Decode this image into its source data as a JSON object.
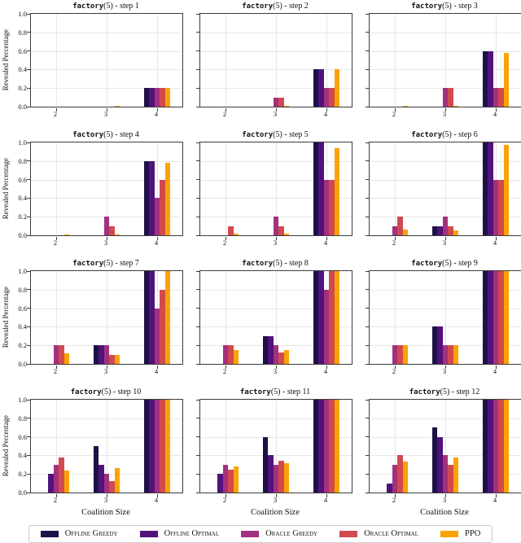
{
  "chart_data": {
    "type": "bar",
    "layout": {
      "rows": 4,
      "cols": 3
    },
    "categories": [
      "2",
      "3",
      "4"
    ],
    "xlabel": "Coalition Size",
    "ylabel": "Revealed Percentage",
    "ylim": [
      0.0,
      1.0
    ],
    "yticks": [
      "0.0",
      "0.2",
      "0.4",
      "0.6",
      "0.8",
      "1.0"
    ],
    "grid": true,
    "legend_position": "bottom",
    "series": [
      {
        "name": "Offline Greedy",
        "color": "#1d1147"
      },
      {
        "name": "Offline Optimal",
        "color": "#51127c"
      },
      {
        "name": "Oracle Greedy",
        "color": "#a3307e"
      },
      {
        "name": "Oracle Optimal",
        "color": "#d14a4e"
      },
      {
        "name": "PPO",
        "color": "#fba207"
      }
    ],
    "subplots": [
      {
        "title_code": "factory",
        "title_rest": "(5) - step 1",
        "values": [
          [
            0,
            0,
            0.2
          ],
          [
            0,
            0,
            0.2
          ],
          [
            0,
            0,
            0.2
          ],
          [
            0,
            0,
            0.2
          ],
          [
            0,
            0.01,
            0.2
          ]
        ]
      },
      {
        "title_code": "factory",
        "title_rest": "(5) - step 2",
        "values": [
          [
            0,
            0,
            0.4
          ],
          [
            0,
            0,
            0.4
          ],
          [
            0,
            0.1,
            0.2
          ],
          [
            0,
            0.1,
            0.2
          ],
          [
            0,
            0.01,
            0.4
          ]
        ]
      },
      {
        "title_code": "factory",
        "title_rest": "(5) - step 3",
        "values": [
          [
            0,
            0,
            0.6
          ],
          [
            0,
            0,
            0.6
          ],
          [
            0,
            0.2,
            0.2
          ],
          [
            0,
            0.2,
            0.2
          ],
          [
            0.01,
            0.01,
            0.58
          ]
        ]
      },
      {
        "title_code": "factory",
        "title_rest": "(5) - step 4",
        "values": [
          [
            0,
            0,
            0.8
          ],
          [
            0,
            0,
            0.8
          ],
          [
            0,
            0.2,
            0.4
          ],
          [
            0,
            0.1,
            0.6
          ],
          [
            0.01,
            0.01,
            0.78
          ]
        ]
      },
      {
        "title_code": "factory",
        "title_rest": "(5) - step 5",
        "values": [
          [
            0,
            0,
            1.0
          ],
          [
            0,
            0,
            1.0
          ],
          [
            0,
            0.2,
            0.6
          ],
          [
            0.1,
            0.1,
            0.6
          ],
          [
            0.02,
            0.02,
            0.94
          ]
        ]
      },
      {
        "title_code": "factory",
        "title_rest": "(5) - step 6",
        "values": [
          [
            0,
            0.1,
            1.0
          ],
          [
            0,
            0.1,
            1.0
          ],
          [
            0.1,
            0.2,
            0.6
          ],
          [
            0.2,
            0.1,
            0.6
          ],
          [
            0.06,
            0.05,
            0.97
          ]
        ]
      },
      {
        "title_code": "factory",
        "title_rest": "(5) - step 7",
        "values": [
          [
            0,
            0.2,
            1.0
          ],
          [
            0,
            0.2,
            1.0
          ],
          [
            0.2,
            0.2,
            0.6
          ],
          [
            0.2,
            0.1,
            0.8
          ],
          [
            0.11,
            0.1,
            1.0
          ]
        ]
      },
      {
        "title_code": "factory",
        "title_rest": "(5) - step 8",
        "values": [
          [
            0,
            0.3,
            1.0
          ],
          [
            0,
            0.3,
            1.0
          ],
          [
            0.2,
            0.2,
            0.8
          ],
          [
            0.2,
            0.12,
            1.0
          ],
          [
            0.15,
            0.15,
            1.0
          ]
        ]
      },
      {
        "title_code": "factory",
        "title_rest": "(5) - step 9",
        "values": [
          [
            0,
            0.4,
            1.0
          ],
          [
            0,
            0.4,
            1.0
          ],
          [
            0.2,
            0.2,
            1.0
          ],
          [
            0.2,
            0.2,
            1.0
          ],
          [
            0.2,
            0.2,
            1.0
          ]
        ]
      },
      {
        "title_code": "factory",
        "title_rest": "(5) - step 10",
        "values": [
          [
            0,
            0.5,
            1.0
          ],
          [
            0.2,
            0.3,
            1.0
          ],
          [
            0.3,
            0.2,
            1.0
          ],
          [
            0.38,
            0.12,
            1.0
          ],
          [
            0.24,
            0.26,
            1.0
          ]
        ]
      },
      {
        "title_code": "factory",
        "title_rest": "(5) - step 11",
        "values": [
          [
            0,
            0.6,
            1.0
          ],
          [
            0.2,
            0.4,
            1.0
          ],
          [
            0.3,
            0.3,
            1.0
          ],
          [
            0.25,
            0.34,
            1.0
          ],
          [
            0.28,
            0.32,
            1.0
          ]
        ]
      },
      {
        "title_code": "factory",
        "title_rest": "(5) - step 12",
        "values": [
          [
            0,
            0.7,
            1.0
          ],
          [
            0.1,
            0.6,
            1.0
          ],
          [
            0.3,
            0.4,
            1.0
          ],
          [
            0.4,
            0.3,
            1.0
          ],
          [
            0.33,
            0.38,
            1.0
          ]
        ]
      }
    ]
  }
}
